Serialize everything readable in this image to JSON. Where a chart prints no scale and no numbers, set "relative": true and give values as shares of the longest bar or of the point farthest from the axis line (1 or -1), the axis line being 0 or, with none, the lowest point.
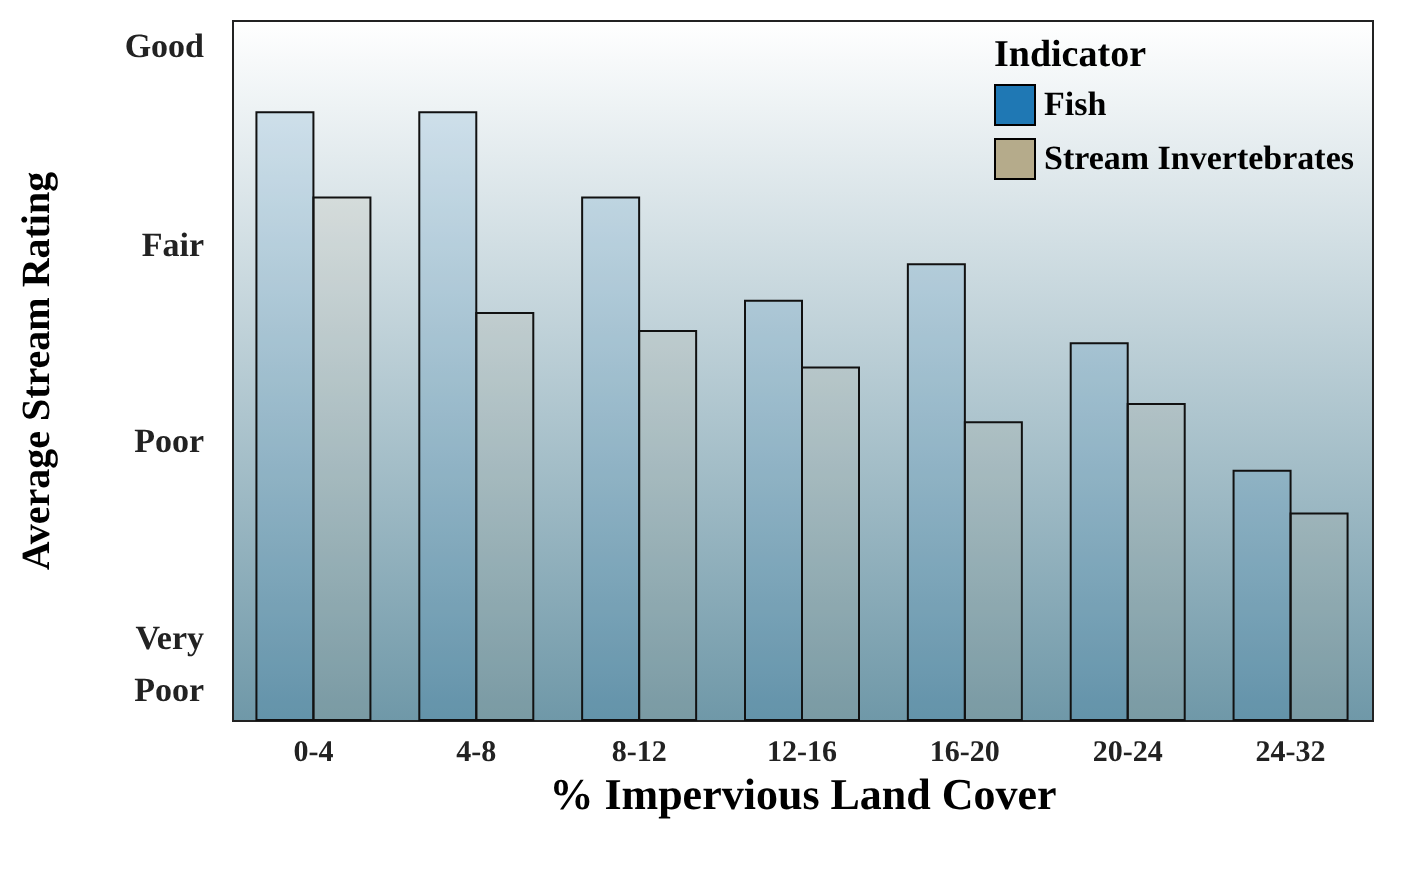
{
  "chart_data": {
    "type": "bar",
    "relative": true,
    "xlabel": "% Impervious Land Cover",
    "ylabel": "Average Stream Rating",
    "legend_title": "Indicator",
    "legend": "top right",
    "categories": [
      "0-4",
      "4-8",
      "8-12",
      "12-16",
      "16-20",
      "20-24",
      "24-32"
    ],
    "series": [
      {
        "name": "Fish",
        "color": "#1f78b4",
        "values": [
          1,
          1,
          0.86,
          0.69,
          0.75,
          0.62,
          0.41
        ]
      },
      {
        "name": "Stream Invertebrates",
        "color": "#b5ab8b",
        "values": [
          0.86,
          0.67,
          0.64,
          0.58,
          0.49,
          0.52,
          0.34
        ]
      }
    ],
    "annotations": [
      "Good",
      "Fair",
      "Poor",
      "Very Poor"
    ]
  }
}
